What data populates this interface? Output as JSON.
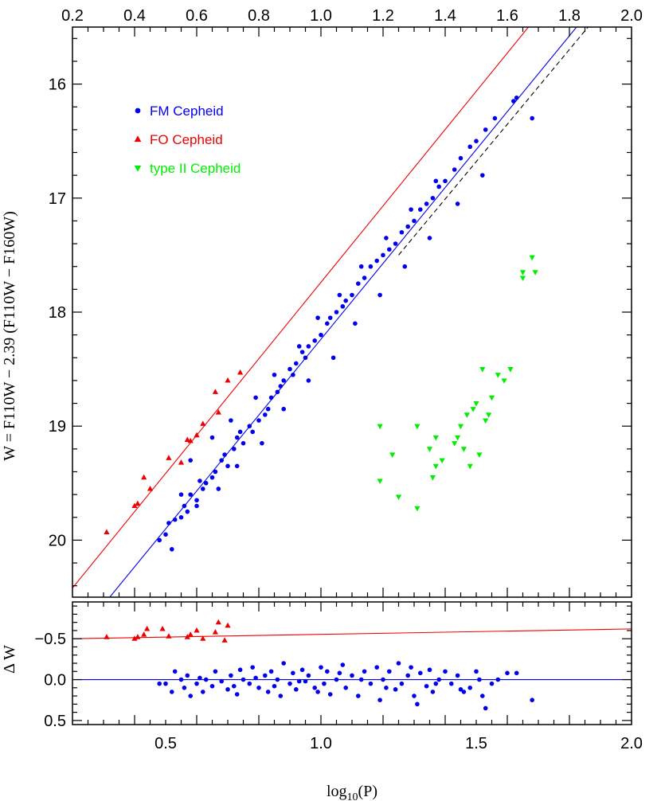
{
  "chart_data": {
    "type": "scatter",
    "xlabel": "log10(P)",
    "xlim": [
      0.2,
      2.0
    ],
    "xticks": [
      0.2,
      0.4,
      0.6,
      0.8,
      1.0,
      1.2,
      1.4,
      1.6,
      1.8,
      2.0
    ],
    "xticks_bottom": [
      0.5,
      1.0,
      1.5,
      2.0
    ],
    "top_panel": {
      "ylabel": "W = F110W − 2.39 (F110W − F160W)",
      "ylim": [
        20.5,
        15.5
      ],
      "yticks": [
        16,
        17,
        18,
        19,
        20
      ],
      "legend_position": "top-left",
      "legend": [
        {
          "label": "FM Cepheid",
          "color": "#0000ee",
          "marker": "circle"
        },
        {
          "label": "FO Cepheid",
          "color": "#ee0000",
          "marker": "triangle-up"
        },
        {
          "label": "type II Cepheid",
          "color": "#00ee00",
          "marker": "triangle-down"
        }
      ],
      "fit_lines": [
        {
          "name": "FO fit",
          "color": "#ee0000",
          "style": "solid",
          "points": [
            [
              0.2,
              20.42
            ],
            [
              1.668,
              15.5
            ]
          ]
        },
        {
          "name": "FM fit",
          "color": "#0000ee",
          "style": "solid",
          "points": [
            [
              0.32,
              20.5
            ],
            [
              1.823,
              15.5
            ]
          ]
        },
        {
          "name": "FM fit alt",
          "color": "#000000",
          "style": "dashed",
          "points": [
            [
              1.25,
              17.5
            ],
            [
              1.86,
              15.5
            ]
          ]
        }
      ],
      "series": [
        {
          "name": "FM Cepheid",
          "color": "#0000ee",
          "marker": "circle",
          "points": [
            [
              0.48,
              20.0
            ],
            [
              0.5,
              19.95
            ],
            [
              0.52,
              20.08
            ],
            [
              0.51,
              19.85
            ],
            [
              0.53,
              19.82
            ],
            [
              0.55,
              19.8
            ],
            [
              0.56,
              19.7
            ],
            [
              0.57,
              19.75
            ],
            [
              0.58,
              19.6
            ],
            [
              0.6,
              19.65
            ],
            [
              0.62,
              19.55
            ],
            [
              0.63,
              19.5
            ],
            [
              0.61,
              19.48
            ],
            [
              0.65,
              19.45
            ],
            [
              0.66,
              19.4
            ],
            [
              0.68,
              19.3
            ],
            [
              0.7,
              19.35
            ],
            [
              0.69,
              19.25
            ],
            [
              0.72,
              19.2
            ],
            [
              0.73,
              19.1
            ],
            [
              0.75,
              19.15
            ],
            [
              0.74,
              19.05
            ],
            [
              0.77,
              19.0
            ],
            [
              0.78,
              19.05
            ],
            [
              0.8,
              18.95
            ],
            [
              0.82,
              18.9
            ],
            [
              0.83,
              18.85
            ],
            [
              0.84,
              18.75
            ],
            [
              0.86,
              18.7
            ],
            [
              0.87,
              18.65
            ],
            [
              0.88,
              18.6
            ],
            [
              0.9,
              18.5
            ],
            [
              0.91,
              18.55
            ],
            [
              0.92,
              18.45
            ],
            [
              0.94,
              18.35
            ],
            [
              0.95,
              18.4
            ],
            [
              0.96,
              18.3
            ],
            [
              0.98,
              18.25
            ],
            [
              1.0,
              18.2
            ],
            [
              1.02,
              18.1
            ],
            [
              1.03,
              18.05
            ],
            [
              1.05,
              18.0
            ],
            [
              1.07,
              17.95
            ],
            [
              1.08,
              17.9
            ],
            [
              1.1,
              17.85
            ],
            [
              1.12,
              17.75
            ],
            [
              1.14,
              17.7
            ],
            [
              1.16,
              17.6
            ],
            [
              1.18,
              17.55
            ],
            [
              1.2,
              17.5
            ],
            [
              1.22,
              17.45
            ],
            [
              1.24,
              17.4
            ],
            [
              1.26,
              17.3
            ],
            [
              1.28,
              17.25
            ],
            [
              1.3,
              17.2
            ],
            [
              1.32,
              17.1
            ],
            [
              1.34,
              17.05
            ],
            [
              1.36,
              17.0
            ],
            [
              1.38,
              16.9
            ],
            [
              1.4,
              16.85
            ],
            [
              1.43,
              16.75
            ],
            [
              1.45,
              16.65
            ],
            [
              1.48,
              16.55
            ],
            [
              1.5,
              16.5
            ],
            [
              1.53,
              16.4
            ],
            [
              1.56,
              16.3
            ],
            [
              1.62,
              16.15
            ],
            [
              1.63,
              16.12
            ],
            [
              1.68,
              16.3
            ],
            [
              0.58,
              19.3
            ],
            [
              0.65,
              19.1
            ],
            [
              0.71,
              18.95
            ],
            [
              0.79,
              18.75
            ],
            [
              0.85,
              18.55
            ],
            [
              0.93,
              18.3
            ],
            [
              0.99,
              18.05
            ],
            [
              1.06,
              17.85
            ],
            [
              1.13,
              17.6
            ],
            [
              1.21,
              17.35
            ],
            [
              1.29,
              17.1
            ],
            [
              1.37,
              16.85
            ],
            [
              0.55,
              19.6
            ],
            [
              0.6,
              19.7
            ],
            [
              0.67,
              19.55
            ],
            [
              0.73,
              19.35
            ],
            [
              0.81,
              19.15
            ],
            [
              0.88,
              18.85
            ],
            [
              0.96,
              18.6
            ],
            [
              1.04,
              18.4
            ],
            [
              1.11,
              18.1
            ],
            [
              1.19,
              17.85
            ],
            [
              1.27,
              17.6
            ],
            [
              1.35,
              17.35
            ],
            [
              1.44,
              17.05
            ],
            [
              1.52,
              16.8
            ]
          ]
        },
        {
          "name": "FO Cepheid",
          "color": "#ee0000",
          "marker": "triangle-up",
          "points": [
            [
              0.31,
              19.93
            ],
            [
              0.4,
              19.7
            ],
            [
              0.41,
              19.68
            ],
            [
              0.43,
              19.45
            ],
            [
              0.45,
              19.55
            ],
            [
              0.51,
              19.28
            ],
            [
              0.55,
              19.32
            ],
            [
              0.57,
              19.12
            ],
            [
              0.58,
              19.13
            ],
            [
              0.6,
              19.08
            ],
            [
              0.62,
              18.98
            ],
            [
              0.67,
              18.88
            ],
            [
              0.66,
              18.7
            ],
            [
              0.7,
              18.6
            ],
            [
              0.74,
              18.53
            ]
          ]
        },
        {
          "name": "type II Cepheid",
          "color": "#00ee00",
          "marker": "triangle-down",
          "points": [
            [
              1.19,
              19.0
            ],
            [
              1.19,
              19.48
            ],
            [
              1.23,
              19.25
            ],
            [
              1.25,
              19.62
            ],
            [
              1.31,
              19.72
            ],
            [
              1.31,
              19.0
            ],
            [
              1.35,
              19.2
            ],
            [
              1.36,
              19.45
            ],
            [
              1.37,
              19.35
            ],
            [
              1.37,
              19.1
            ],
            [
              1.39,
              19.3
            ],
            [
              1.43,
              19.15
            ],
            [
              1.44,
              19.1
            ],
            [
              1.45,
              19.0
            ],
            [
              1.46,
              19.2
            ],
            [
              1.47,
              18.9
            ],
            [
              1.48,
              19.35
            ],
            [
              1.49,
              18.85
            ],
            [
              1.5,
              18.8
            ],
            [
              1.51,
              19.25
            ],
            [
              1.52,
              18.5
            ],
            [
              1.53,
              18.95
            ],
            [
              1.54,
              18.9
            ],
            [
              1.55,
              18.75
            ],
            [
              1.57,
              18.55
            ],
            [
              1.59,
              18.6
            ],
            [
              1.61,
              18.5
            ],
            [
              1.65,
              17.7
            ],
            [
              1.65,
              17.65
            ],
            [
              1.68,
              17.52
            ],
            [
              1.69,
              17.65
            ]
          ]
        }
      ]
    },
    "bottom_panel": {
      "ylabel": "Δ W",
      "ylim": [
        0.55,
        -0.95
      ],
      "yticks": [
        -0.5,
        0.0,
        0.5
      ],
      "ytick_labels": [
        "−0.5",
        "0.0",
        "0.5"
      ],
      "ref_lines": [
        {
          "color": "#0000ee",
          "points": [
            [
              0.2,
              0.0
            ],
            [
              2.0,
              0.0
            ]
          ]
        },
        {
          "color": "#ee0000",
          "points": [
            [
              0.2,
              -0.5
            ],
            [
              2.0,
              -0.62
            ]
          ]
        }
      ],
      "series": [
        {
          "name": "FM Cepheid",
          "color": "#0000ee",
          "marker": "circle",
          "points": [
            [
              0.48,
              0.05
            ],
            [
              0.5,
              0.05
            ],
            [
              0.52,
              0.15
            ],
            [
              0.53,
              -0.1
            ],
            [
              0.55,
              0.0
            ],
            [
              0.56,
              0.1
            ],
            [
              0.57,
              -0.05
            ],
            [
              0.58,
              0.2
            ],
            [
              0.6,
              0.05
            ],
            [
              0.61,
              -0.02
            ],
            [
              0.62,
              0.15
            ],
            [
              0.63,
              0.0
            ],
            [
              0.65,
              0.08
            ],
            [
              0.66,
              -0.1
            ],
            [
              0.68,
              0.02
            ],
            [
              0.7,
              0.12
            ],
            [
              0.71,
              -0.05
            ],
            [
              0.72,
              0.08
            ],
            [
              0.74,
              -0.12
            ],
            [
              0.75,
              0.0
            ],
            [
              0.77,
              0.05
            ],
            [
              0.78,
              -0.15
            ],
            [
              0.8,
              0.1
            ],
            [
              0.82,
              -0.05
            ],
            [
              0.83,
              0.15
            ],
            [
              0.84,
              -0.1
            ],
            [
              0.86,
              0.0
            ],
            [
              0.87,
              0.2
            ],
            [
              0.88,
              -0.2
            ],
            [
              0.9,
              0.05
            ],
            [
              0.91,
              -0.08
            ],
            [
              0.92,
              0.12
            ],
            [
              0.94,
              -0.12
            ],
            [
              0.95,
              0.02
            ],
            [
              0.96,
              -0.05
            ],
            [
              0.98,
              0.1
            ],
            [
              1.0,
              -0.15
            ],
            [
              1.01,
              0.05
            ],
            [
              1.02,
              -0.1
            ],
            [
              1.03,
              0.18
            ],
            [
              1.05,
              0.0
            ],
            [
              1.07,
              -0.18
            ],
            [
              1.08,
              0.1
            ],
            [
              1.1,
              -0.05
            ],
            [
              1.12,
              0.2
            ],
            [
              1.14,
              -0.1
            ],
            [
              1.16,
              0.05
            ],
            [
              1.18,
              -0.15
            ],
            [
              1.19,
              0.25
            ],
            [
              1.2,
              0.0
            ],
            [
              1.22,
              -0.1
            ],
            [
              1.24,
              0.12
            ],
            [
              1.25,
              -0.2
            ],
            [
              1.26,
              0.05
            ],
            [
              1.28,
              -0.05
            ],
            [
              1.3,
              0.2
            ],
            [
              1.31,
              0.3
            ],
            [
              1.32,
              -0.08
            ],
            [
              1.34,
              0.08
            ],
            [
              1.35,
              -0.12
            ],
            [
              1.36,
              0.15
            ],
            [
              1.38,
              0.0
            ],
            [
              1.4,
              -0.1
            ],
            [
              1.42,
              0.05
            ],
            [
              1.45,
              0.12
            ],
            [
              1.48,
              0.1
            ],
            [
              1.5,
              -0.1
            ],
            [
              1.52,
              0.2
            ],
            [
              1.53,
              0.35
            ],
            [
              1.55,
              0.05
            ],
            [
              1.57,
              0.0
            ],
            [
              1.6,
              -0.08
            ],
            [
              1.63,
              -0.08
            ],
            [
              1.68,
              0.25
            ],
            [
              0.73,
              0.18
            ],
            [
              0.79,
              -0.02
            ],
            [
              0.85,
              0.08
            ],
            [
              0.93,
              0.02
            ],
            [
              0.99,
              0.15
            ],
            [
              1.06,
              -0.08
            ],
            [
              1.13,
              0.0
            ],
            [
              1.21,
              0.1
            ],
            [
              1.29,
              -0.15
            ],
            [
              1.37,
              0.05
            ],
            [
              1.44,
              -0.05
            ],
            [
              1.46,
              0.15
            ],
            [
              1.51,
              0.0
            ]
          ]
        },
        {
          "name": "FO Cepheid",
          "color": "#ee0000",
          "marker": "triangle-up",
          "points": [
            [
              0.31,
              -0.52
            ],
            [
              0.4,
              -0.5
            ],
            [
              0.41,
              -0.52
            ],
            [
              0.43,
              -0.55
            ],
            [
              0.44,
              -0.62
            ],
            [
              0.49,
              -0.62
            ],
            [
              0.51,
              -0.53
            ],
            [
              0.57,
              -0.52
            ],
            [
              0.58,
              -0.55
            ],
            [
              0.6,
              -0.6
            ],
            [
              0.62,
              -0.5
            ],
            [
              0.66,
              -0.58
            ],
            [
              0.67,
              -0.7
            ],
            [
              0.69,
              -0.48
            ],
            [
              0.7,
              -0.66
            ]
          ]
        }
      ]
    }
  }
}
